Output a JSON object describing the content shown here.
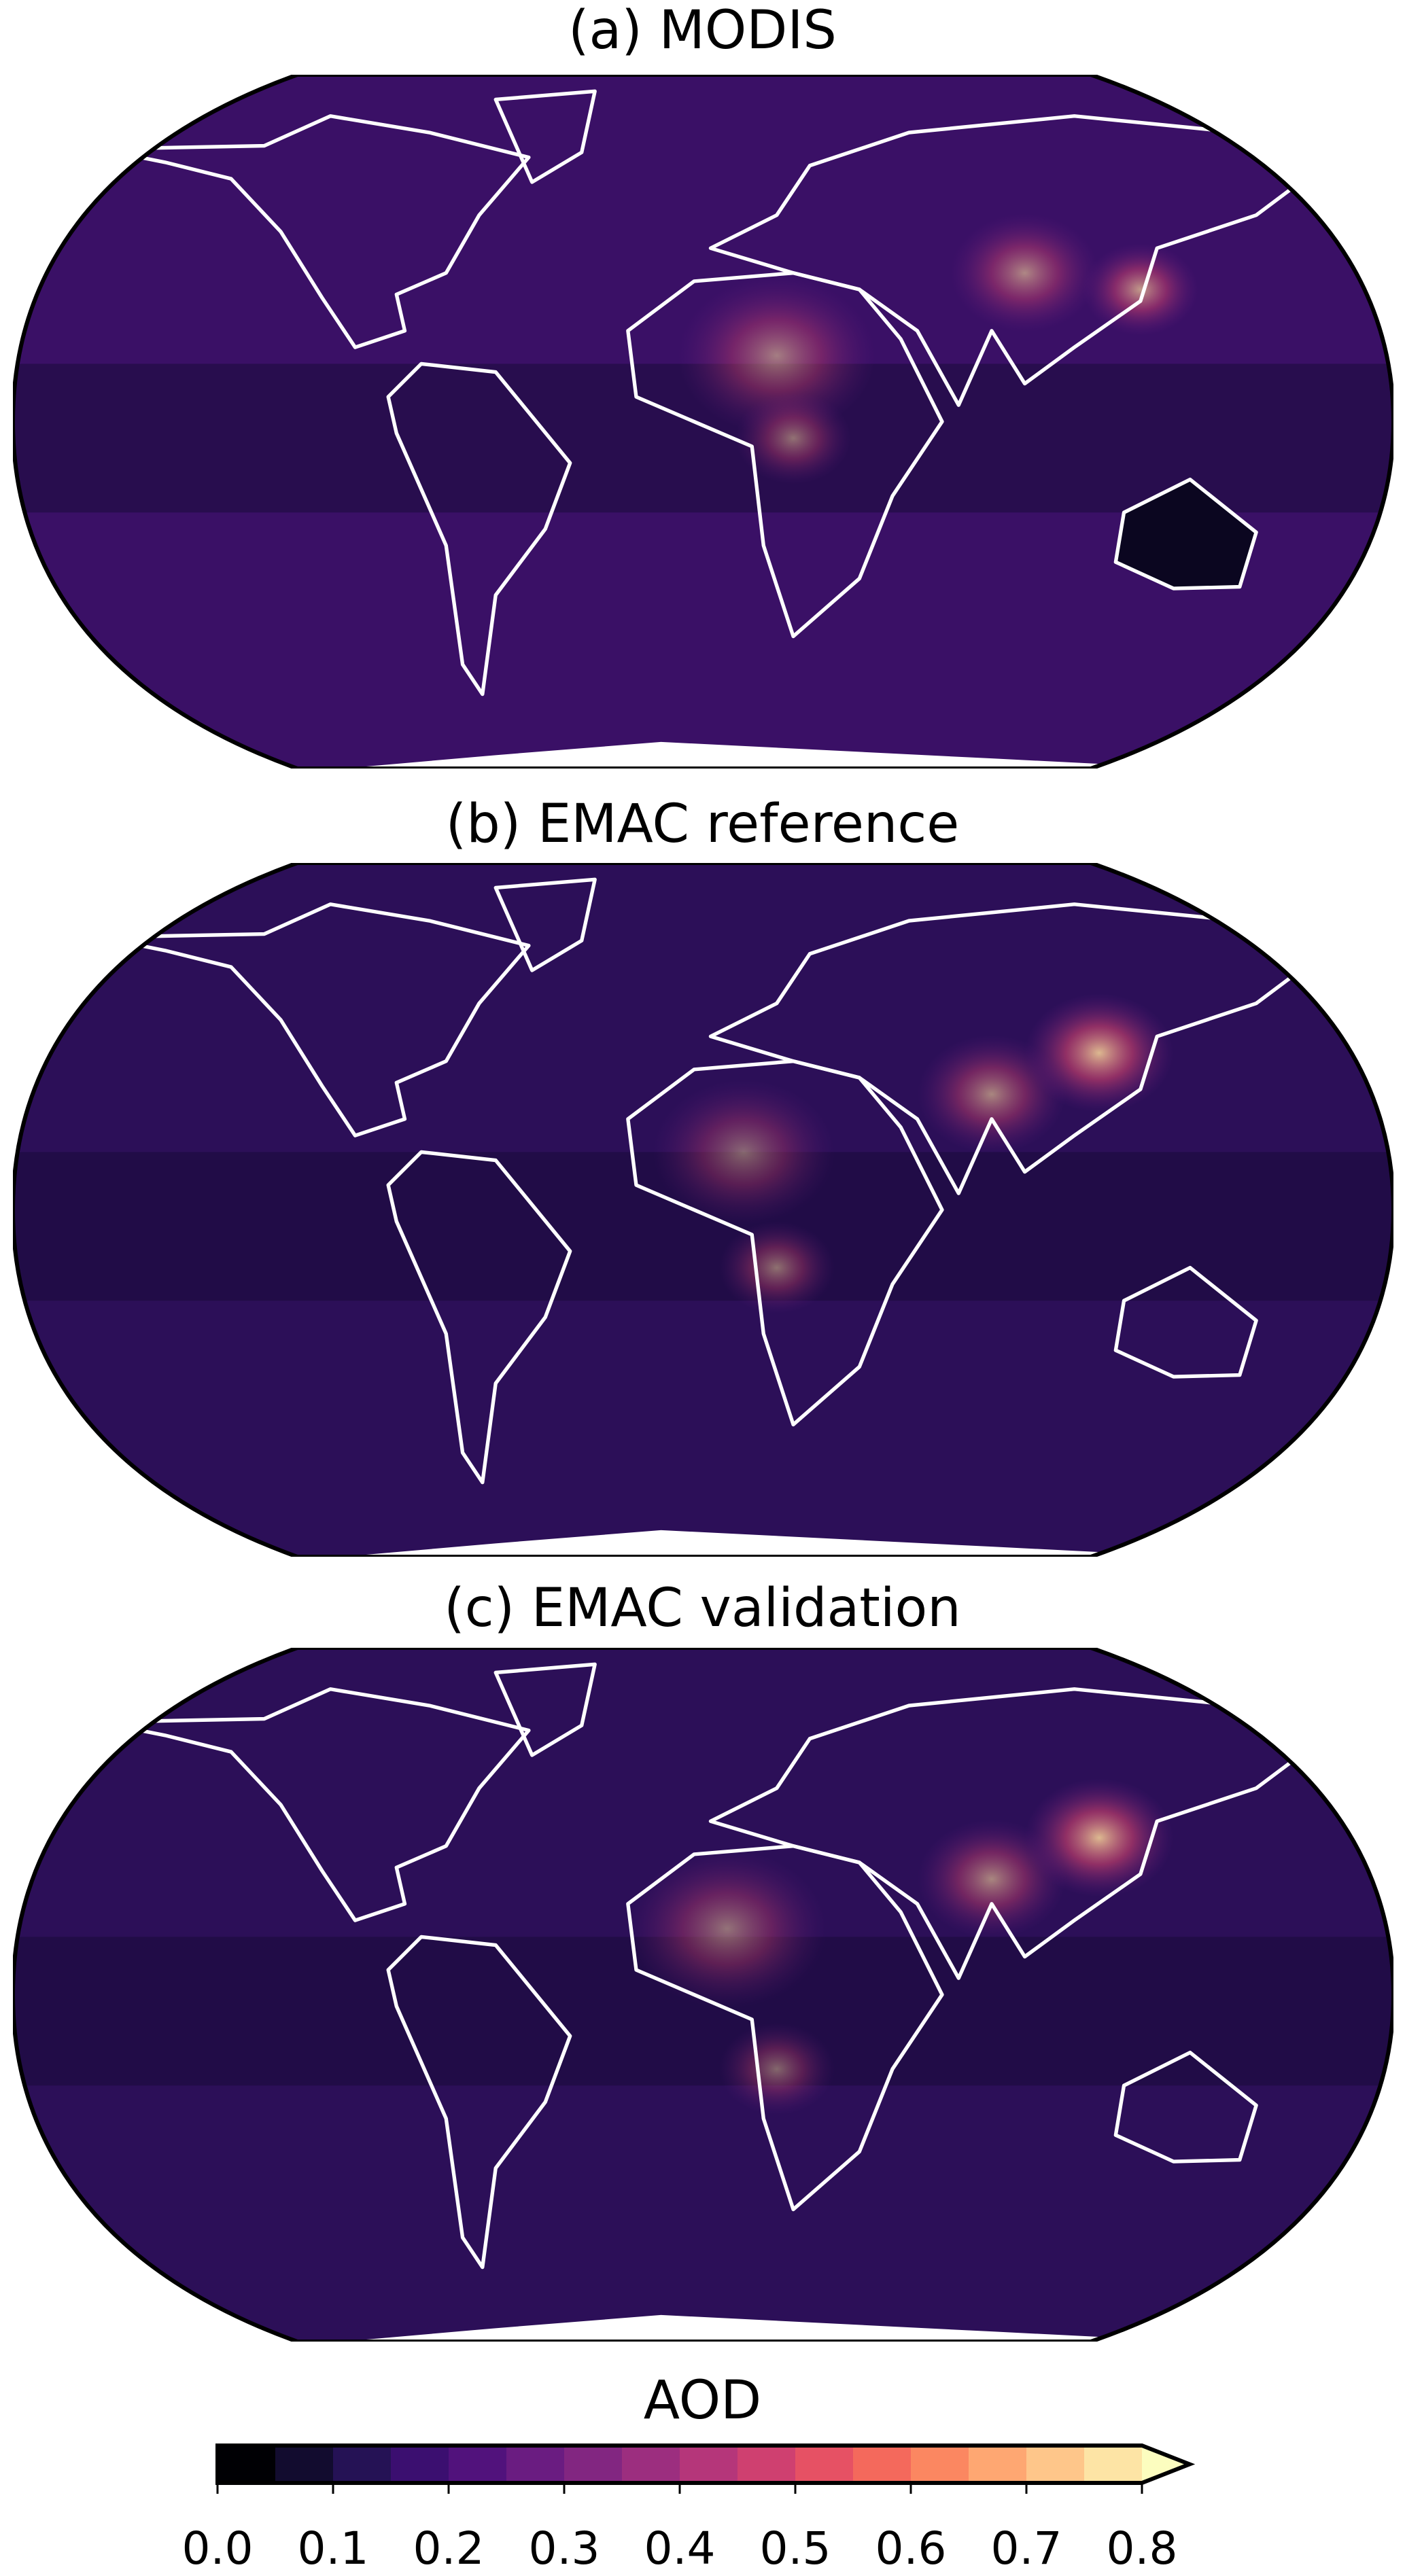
{
  "panels": [
    {
      "title": "(a) MODIS"
    },
    {
      "title": "(b) EMAC reference"
    },
    {
      "title": "(c) EMAC validation"
    }
  ],
  "colorbar": {
    "label": "AOD",
    "colormap": "magma",
    "extend": "max",
    "range": [
      0.0,
      0.8
    ],
    "step": 0.05,
    "ticks": [
      "0.0",
      "0.1",
      "0.2",
      "0.3",
      "0.4",
      "0.5",
      "0.6",
      "0.7",
      "0.8"
    ],
    "colors": [
      "#000004",
      "#120c2f",
      "#251255",
      "#3b0f70",
      "#51127c",
      "#6a1c81",
      "#822681",
      "#9c2e7f",
      "#b5367a",
      "#cf4070",
      "#e65164",
      "#f4695c",
      "#fb8761",
      "#fea772",
      "#fec68a",
      "#fde4a5",
      "#fcfdbf"
    ]
  },
  "coastline_color": "#ffffff"
}
